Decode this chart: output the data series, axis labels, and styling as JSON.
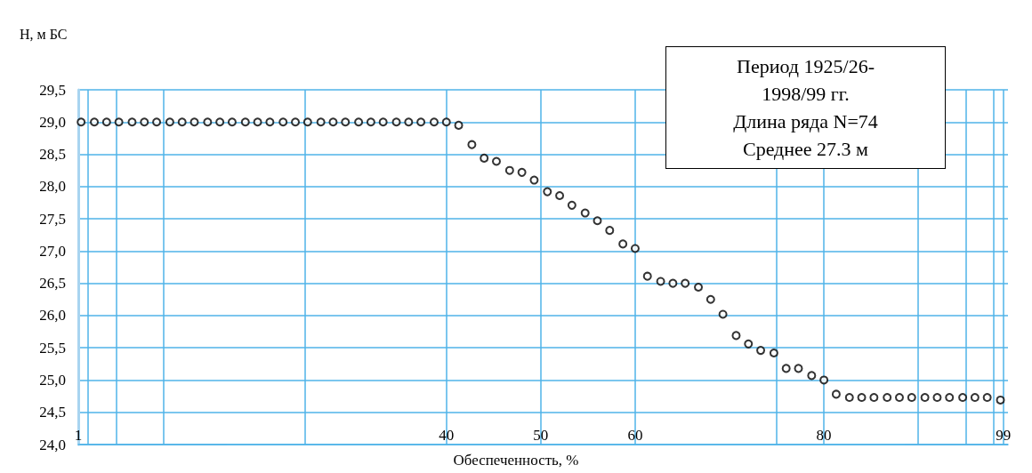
{
  "chart_data": {
    "type": "scatter",
    "xlabel": "Обеспеченность, %",
    "ylabel": "Н, м БС",
    "annotations": [
      "Период 1925/26-\n1998/99 гг.\nДлина ряда N=74\nСреднее 27.3 м"
    ],
    "x": [
      1.3,
      2.7,
      4.0,
      5.3,
      6.7,
      8.0,
      9.3,
      10.7,
      12.0,
      13.3,
      14.7,
      16.0,
      17.3,
      18.7,
      20.0,
      21.3,
      22.7,
      24.0,
      25.3,
      26.7,
      28.0,
      29.3,
      30.7,
      32.0,
      33.3,
      34.7,
      36.0,
      37.3,
      38.7,
      40.0,
      41.3,
      42.7,
      44.0,
      45.3,
      46.7,
      48.0,
      49.3,
      50.7,
      52.0,
      53.3,
      54.7,
      56.0,
      57.3,
      58.7,
      60.0,
      61.3,
      62.7,
      64.0,
      65.3,
      66.7,
      68.0,
      69.3,
      70.7,
      72.0,
      73.3,
      74.7,
      76.0,
      77.3,
      78.7,
      80.0,
      81.3,
      82.7,
      84.0,
      85.3,
      86.7,
      88.0,
      89.3,
      90.7,
      92.0,
      93.3,
      94.7,
      96.0,
      97.3,
      98.7
    ],
    "series": [
      {
        "color": "#000000",
        "values": [
          29.0,
          29.0,
          29.0,
          29.0,
          29.0,
          29.0,
          29.0,
          29.0,
          29.0,
          29.0,
          29.0,
          29.0,
          29.0,
          29.0,
          29.0,
          29.0,
          29.0,
          29.0,
          29.0,
          29.0,
          29.0,
          29.0,
          29.0,
          29.0,
          29.0,
          29.0,
          29.0,
          29.0,
          29.0,
          29.0,
          28.95,
          28.65,
          28.44,
          28.39,
          28.25,
          28.22,
          28.1,
          27.92,
          27.86,
          27.71,
          27.59,
          27.47,
          27.32,
          27.11,
          27.04,
          26.61,
          26.53,
          26.5,
          26.5,
          26.44,
          26.25,
          26.02,
          25.69,
          25.56,
          25.46,
          25.42,
          25.18,
          25.18,
          25.07,
          25.0,
          24.78,
          24.73,
          24.73,
          24.73,
          24.73,
          24.73,
          24.73,
          24.73,
          24.73,
          24.73,
          24.73,
          24.73,
          24.73,
          24.69
        ]
      }
    ],
    "xlim": [
      1,
      99.5
    ],
    "xticks": [
      1,
      {
        "value": 2,
        "label": null
      },
      {
        "value": 5,
        "label": null
      },
      {
        "value": 10,
        "label": null
      },
      {
        "value": 25,
        "label": null
      },
      40,
      50,
      60,
      {
        "value": 75,
        "label": null
      },
      80,
      {
        "value": 90,
        "label": null
      },
      {
        "value": 95,
        "label": null
      },
      {
        "value": 98,
        "label": null
      },
      99
    ],
    "ylim": [
      24.0,
      29.5
    ],
    "yticks": [
      {
        "value": 24.0,
        "label": "24,0"
      },
      {
        "value": 24.5,
        "label": "24,5"
      },
      {
        "value": 25.0,
        "label": "25,0"
      },
      {
        "value": 25.5,
        "label": "25,5"
      },
      {
        "value": 26.0,
        "label": "26,0"
      },
      {
        "value": 26.5,
        "label": "26,5"
      },
      {
        "value": 27.0,
        "label": "27,0"
      },
      {
        "value": 27.5,
        "label": "27,5"
      },
      {
        "value": 28.0,
        "label": "28,0"
      },
      {
        "value": 28.5,
        "label": "28,5"
      },
      {
        "value": 29.0,
        "label": "29,0"
      },
      {
        "value": 29.5,
        "label": "29,5"
      }
    ],
    "grid": true,
    "marker": "circle"
  }
}
